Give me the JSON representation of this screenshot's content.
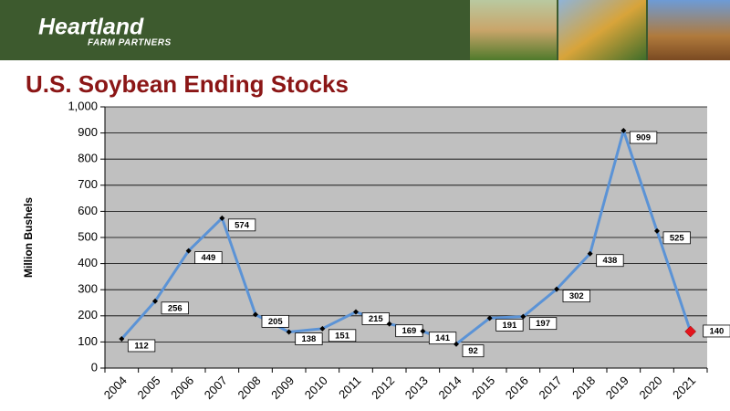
{
  "header": {
    "brand": "Heartland",
    "tagline": "FARM PARTNERS"
  },
  "chart_data": {
    "type": "line",
    "title": "U.S. Soybean Ending Stocks",
    "y_label": "Million Bushels",
    "categories": [
      "2004",
      "2005",
      "2006",
      "2007",
      "2008",
      "2009",
      "2010",
      "2011",
      "2012",
      "2013",
      "2014",
      "2015",
      "2016",
      "2017",
      "2018",
      "2019",
      "2020",
      "2021"
    ],
    "series": [
      {
        "name": "Ending Stocks",
        "color": "#5b93d6",
        "values": [
          112,
          256,
          449,
          574,
          205,
          138,
          151,
          215,
          169,
          141,
          92,
          191,
          197,
          302,
          438,
          909,
          525,
          140
        ]
      }
    ],
    "marker_color": "#000000",
    "last_marker_color": "#e3141c",
    "ylim": [
      0,
      1000
    ],
    "yticks": [
      0,
      100,
      200,
      300,
      400,
      500,
      600,
      700,
      800,
      900,
      {
        "value": 1000,
        "label": "1,000"
      }
    ],
    "grid": true
  }
}
